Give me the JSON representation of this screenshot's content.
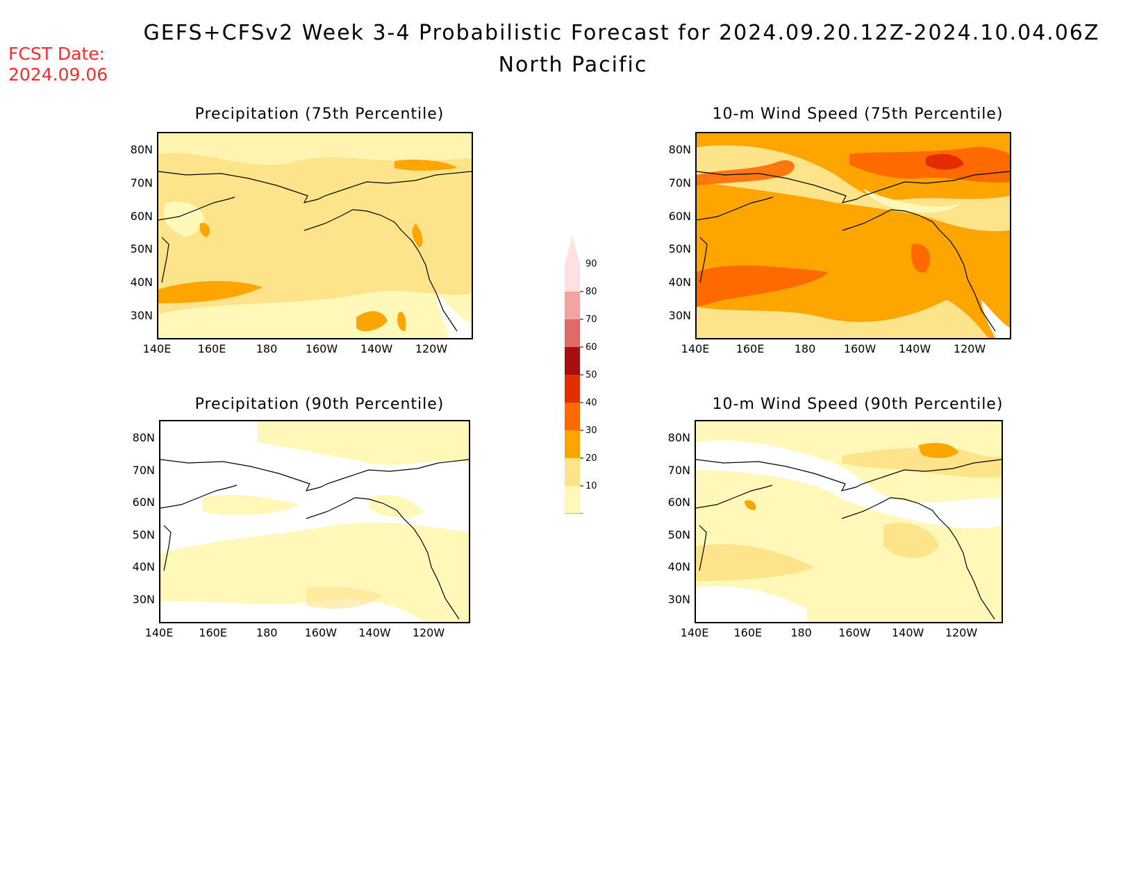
{
  "header": {
    "title": "GEFS+CFSv2 Week 3-4 Probabilistic Forecast for 2024.09.20.12Z-2024.10.04.06Z",
    "region": "North Pacific",
    "fcst_label": "FCST Date:",
    "fcst_date": "2024.09.06"
  },
  "axes": {
    "lat_labels": [
      "80N",
      "70N",
      "60N",
      "50N",
      "40N",
      "30N"
    ],
    "lon_labels": [
      "140E",
      "160E",
      "180",
      "160W",
      "140W",
      "120W"
    ]
  },
  "panels": [
    {
      "id": "precip75",
      "title": "Precipitation (75th Percentile)"
    },
    {
      "id": "wind75",
      "title": "10-m Wind Speed (75th Percentile)"
    },
    {
      "id": "precip90",
      "title": "Precipitation (90th Percentile)"
    },
    {
      "id": "wind90",
      "title": "10-m Wind Speed (90th Percentile)"
    }
  ],
  "colorbar": {
    "levels": [
      "90",
      "80",
      "70",
      "60",
      "50",
      "40",
      "30",
      "20",
      "10"
    ],
    "colors": [
      "#fde0e0",
      "#f4a3a3",
      "#e06a6a",
      "#a50f0f",
      "#e32c00",
      "#ff6a00",
      "#ffa500",
      "#fde38a",
      "#fff8b8"
    ]
  },
  "palette": {
    "white": "#ffffff",
    "c10": "#fff8b8",
    "c20": "#fde38a",
    "c30": "#ffa500",
    "c40": "#ff6a00",
    "c50": "#e32c00",
    "c60": "#a50f0f"
  }
}
